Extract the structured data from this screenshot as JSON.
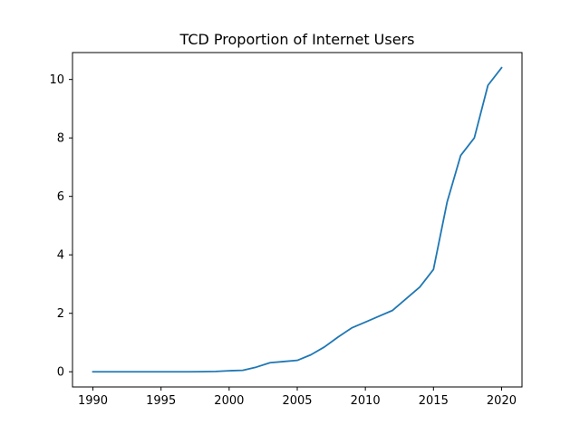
{
  "chart_data": {
    "type": "line",
    "title": "TCD Proportion of Internet Users",
    "xlabel": "",
    "ylabel": "",
    "xlim": [
      1988.5,
      2021.5
    ],
    "ylim": [
      -0.52,
      10.92
    ],
    "xticks": [
      1990,
      1995,
      2000,
      2005,
      2010,
      2015,
      2020
    ],
    "yticks": [
      0,
      2,
      4,
      6,
      8,
      10
    ],
    "grid": false,
    "legend": "none",
    "series": [
      {
        "color": "#1f77b4",
        "x": [
          1990,
          1991,
          1992,
          1993,
          1994,
          1995,
          1996,
          1997,
          1998,
          1999,
          2000,
          2001,
          2002,
          2003,
          2004,
          2005,
          2006,
          2007,
          2008,
          2009,
          2010,
          2011,
          2012,
          2013,
          2014,
          2015,
          2016,
          2017,
          2018,
          2019,
          2020
        ],
        "y": [
          0,
          0,
          0,
          0,
          0,
          0,
          0,
          0,
          0.003,
          0.01,
          0.035,
          0.05,
          0.16,
          0.31,
          0.35,
          0.39,
          0.58,
          0.85,
          1.19,
          1.5,
          1.7,
          1.9,
          2.1,
          2.5,
          2.9,
          3.5,
          5.8,
          7.4,
          8.0,
          9.8,
          10.4
        ]
      }
    ]
  }
}
